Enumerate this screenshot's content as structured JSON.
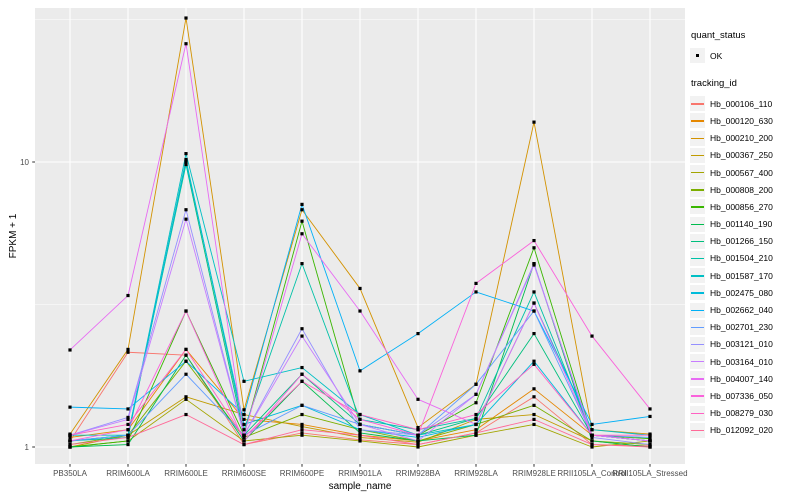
{
  "figure": {
    "background": "#FFFFFF",
    "panel_background": "#EBEBEB",
    "gridline_color": "#FFFFFF",
    "tick_color": "#333333",
    "tick_label_color": "#4D4D4D",
    "point_color": "#000000"
  },
  "chart_data": {
    "type": "line",
    "title": "",
    "xlabel": "sample_name",
    "ylabel": "FPKM + 1",
    "y_scale": "log10",
    "y_ticks": [
      1,
      10
    ],
    "y_minor_ticks": [
      3.162,
      31.62
    ],
    "ylim": [
      0.87,
      35
    ],
    "grid": true,
    "legend_position": "right",
    "marker": "small-black-square",
    "categories": [
      "PB350LA",
      "RRIM600LA",
      "RRIM600LE",
      "RRIM600SE",
      "RRIM600PE",
      "RRIM901LA",
      "RRIM928BA",
      "RRIM928LA",
      "RRIM928LE",
      "RRII105LA_Control",
      "RRII105LA_Stressed"
    ],
    "series": [
      {
        "name": "Hb_000106_110",
        "color": "#F8766D",
        "values": [
          1.05,
          2.15,
          2.1,
          1.02,
          1.12,
          1.06,
          1.02,
          1.12,
          1.5,
          1.02,
          1.01
        ]
      },
      {
        "name": "Hb_000120_630",
        "color": "#E58700",
        "values": [
          1.08,
          1.15,
          2.2,
          1.25,
          1.2,
          1.1,
          1.05,
          1.15,
          1.6,
          1.1,
          1.05
        ]
      },
      {
        "name": "Hb_000210_200",
        "color": "#D39200",
        "values": [
          1.11,
          2.2,
          32,
          1.35,
          6.8,
          3.6,
          1.17,
          1.66,
          13.8,
          1.15,
          1.11
        ]
      },
      {
        "name": "Hb_000367_250",
        "color": "#C09B00",
        "values": [
          1.0,
          1.1,
          1.5,
          1.3,
          1.18,
          1.08,
          1.04,
          1.25,
          1.3,
          1.05,
          1.0
        ]
      },
      {
        "name": "Hb_000567_400",
        "color": "#A3A500",
        "values": [
          1.0,
          1.05,
          1.47,
          1.05,
          1.1,
          1.05,
          1.0,
          1.1,
          1.2,
          1.0,
          1.05
        ]
      },
      {
        "name": "Hb_000808_200",
        "color": "#7CAE00",
        "values": [
          1.02,
          1.1,
          2.0,
          1.08,
          1.3,
          1.15,
          1.05,
          1.2,
          1.4,
          1.05,
          1.02
        ]
      },
      {
        "name": "Hb_000856_270",
        "color": "#39B600",
        "values": [
          1.0,
          1.05,
          3.0,
          1.1,
          6.2,
          1.2,
          1.1,
          1.43,
          5.0,
          1.1,
          1.07
        ]
      },
      {
        "name": "Hb_001140_190",
        "color": "#00BB4E",
        "values": [
          1.0,
          1.02,
          2.1,
          1.05,
          1.7,
          1.12,
          1.05,
          1.1,
          4.4,
          1.05,
          1.0
        ]
      },
      {
        "name": "Hb_001266_150",
        "color": "#00BF7D",
        "values": [
          1.05,
          1.1,
          9.8,
          1.1,
          1.8,
          1.2,
          1.1,
          1.26,
          2.5,
          1.1,
          1.05
        ]
      },
      {
        "name": "Hb_001504_210",
        "color": "#00C1A7",
        "values": [
          1.05,
          1.08,
          10.2,
          1.15,
          4.4,
          1.25,
          1.15,
          1.26,
          3.5,
          1.1,
          1.05
        ]
      },
      {
        "name": "Hb_001587_170",
        "color": "#00BFC4",
        "values": [
          1.1,
          1.1,
          10.7,
          1.7,
          1.9,
          1.3,
          1.1,
          1.2,
          3.2,
          1.15,
          1.1
        ]
      },
      {
        "name": "Hb_002475_080",
        "color": "#00BBDA",
        "values": [
          1.05,
          1.1,
          10.0,
          1.2,
          1.4,
          1.15,
          1.08,
          1.2,
          2.0,
          1.1,
          1.05
        ]
      },
      {
        "name": "Hb_002662_040",
        "color": "#00B0F6",
        "values": [
          1.38,
          1.36,
          2.0,
          1.3,
          7.1,
          1.85,
          2.5,
          3.5,
          3.0,
          1.2,
          1.28
        ]
      },
      {
        "name": "Hb_002701_230",
        "color": "#619CFF",
        "values": [
          1.05,
          1.1,
          1.8,
          1.1,
          1.4,
          1.2,
          1.1,
          1.66,
          3.0,
          1.1,
          1.08
        ]
      },
      {
        "name": "Hb_003121_010",
        "color": "#9590FF",
        "values": [
          1.1,
          1.27,
          6.8,
          1.1,
          2.6,
          1.15,
          1.1,
          1.53,
          4.4,
          1.08,
          1.02
        ]
      },
      {
        "name": "Hb_003164_010",
        "color": "#C77CFF",
        "values": [
          1.1,
          1.25,
          6.3,
          1.1,
          2.45,
          1.2,
          1.05,
          1.53,
          4.35,
          1.1,
          1.05
        ]
      },
      {
        "name": "Hb_004007_140",
        "color": "#E76BF3",
        "values": [
          2.19,
          3.4,
          26,
          1.1,
          5.6,
          3.0,
          1.47,
          1.2,
          3.2,
          1.1,
          1.05
        ]
      },
      {
        "name": "Hb_007336_050",
        "color": "#FA62DB",
        "values": [
          1.05,
          1.15,
          3.0,
          1.05,
          1.8,
          1.25,
          1.1,
          3.75,
          5.3,
          2.45,
          1.36
        ]
      },
      {
        "name": "Hb_008279_030",
        "color": "#FF61C3",
        "values": [
          1.1,
          1.2,
          2.2,
          1.08,
          1.7,
          1.3,
          1.15,
          1.3,
          1.95,
          1.1,
          1.1
        ]
      },
      {
        "name": "Hb_012092_020",
        "color": "#FF6A98",
        "values": [
          1.02,
          1.08,
          1.3,
          1.02,
          1.15,
          1.1,
          1.02,
          1.12,
          1.25,
          1.02,
          1.0
        ]
      }
    ]
  },
  "legend": {
    "quant_status": {
      "title": "quant_status",
      "items": [
        {
          "label": "OK"
        }
      ]
    },
    "tracking_id": {
      "title": "tracking_id"
    }
  }
}
